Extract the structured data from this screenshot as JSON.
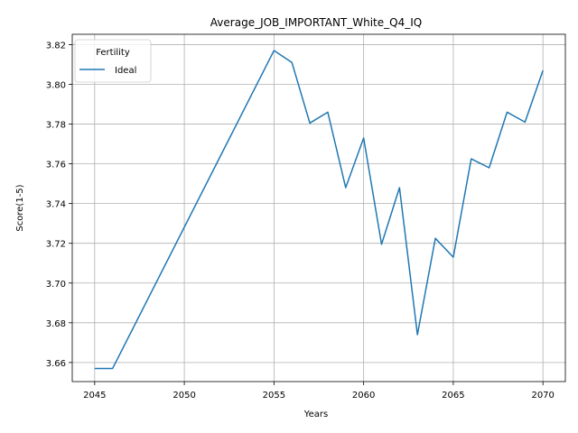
{
  "chart_data": {
    "type": "line",
    "title": "Average_JOB_IMPORTANT_White_Q4_IQ",
    "xlabel": "Years",
    "ylabel": "Score(1-5)",
    "xlim": [
      2043.75,
      2071.25
    ],
    "ylim": [
      3.6504,
      3.8252
    ],
    "xticks": [
      2045,
      2050,
      2055,
      2060,
      2065,
      2070
    ],
    "yticks": [
      3.66,
      3.68,
      3.7,
      3.72,
      3.74,
      3.76,
      3.78,
      3.8,
      3.82
    ],
    "grid": true,
    "legend": {
      "title": "Fertility",
      "placement": "upper-left"
    },
    "series": [
      {
        "name": "Ideal",
        "color": "#1f77b4",
        "x": [
          2045,
          2046,
          2055,
          2056,
          2057,
          2058,
          2059,
          2060,
          2061,
          2062,
          2063,
          2064,
          2065,
          2066,
          2067,
          2068,
          2069,
          2070
        ],
        "values": [
          3.657,
          3.657,
          3.817,
          3.811,
          3.7805,
          3.786,
          3.748,
          3.773,
          3.7195,
          3.748,
          3.674,
          3.7225,
          3.713,
          3.7625,
          3.758,
          3.786,
          3.781,
          3.807
        ]
      }
    ]
  }
}
